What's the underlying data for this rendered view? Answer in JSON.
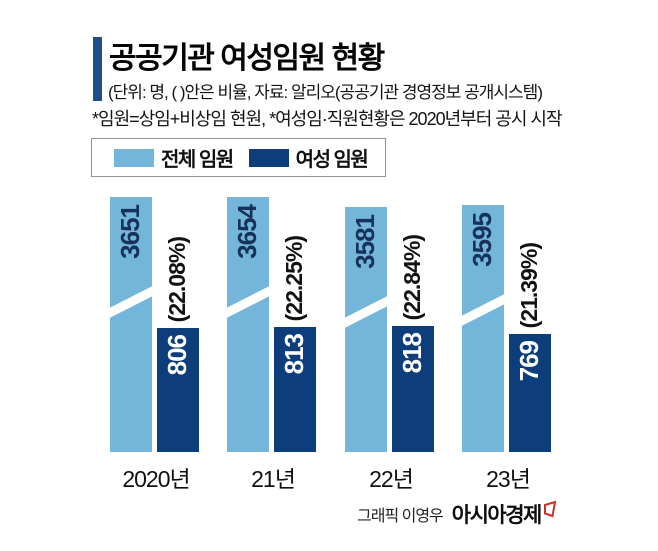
{
  "header": {
    "title": "공공기관 여성임원 현황",
    "subtitle": "(단위: 명, (  )안은 비율, 자료: 알리오(공공기관 경영정보 공개시스템)",
    "note": "*임원=상임+비상임 현원, *여성임·직원현황은 2020년부터 공시 시작"
  },
  "legend": {
    "items": [
      {
        "label": "전체 임원",
        "color": "#74b5da"
      },
      {
        "label": "여성 임원",
        "color": "#0e3d7c"
      }
    ]
  },
  "chart_data": {
    "type": "bar",
    "categories": [
      "2020년",
      "21년",
      "22년",
      "23년"
    ],
    "series": [
      {
        "name": "전체 임원",
        "color": "#74b5da",
        "values": [
          3651,
          3654,
          3581,
          3595
        ]
      },
      {
        "name": "여성 임원",
        "color": "#0e3d7c",
        "values": [
          806,
          813,
          818,
          769
        ]
      }
    ],
    "percent_labels": [
      "(22.08%)",
      "(22.25%)",
      "(22.84%)",
      "(21.39%)"
    ],
    "broken_axis": true,
    "legend_position": "top",
    "value_labels_rotated": true
  },
  "credit": {
    "prefix": "그래픽 이영우",
    "brand": "아시아경제"
  },
  "colors": {
    "light_blue": "#74b5da",
    "dark_navy": "#0e3d7c",
    "accent": "#1e4e8c",
    "value_text_navy": "#16325a",
    "brand_red": "#c9302a"
  }
}
